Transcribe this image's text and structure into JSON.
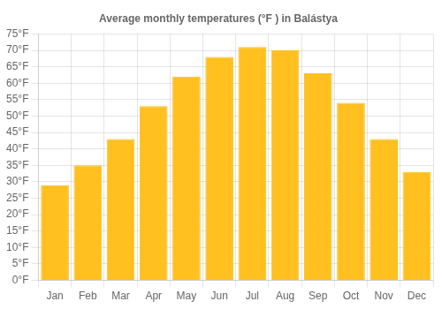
{
  "chart_data": {
    "type": "bar",
    "title": "Average monthly temperatures (°F ) in Balástya",
    "categories": [
      "Jan",
      "Feb",
      "Mar",
      "Apr",
      "May",
      "Jun",
      "Jul",
      "Aug",
      "Sep",
      "Oct",
      "Nov",
      "Dec"
    ],
    "values": [
      29,
      35,
      43,
      53,
      62,
      68,
      71,
      70,
      63,
      54,
      43,
      33
    ],
    "color": "#FFC020",
    "ylim": [
      0,
      75
    ],
    "yticks": [
      {
        "value": 0,
        "label": "0°F"
      },
      {
        "value": 5,
        "label": "5°F"
      },
      {
        "value": 10,
        "label": "10°F"
      },
      {
        "value": 15,
        "label": "15°F"
      },
      {
        "value": 20,
        "label": "20°F"
      },
      {
        "value": 25,
        "label": "25°F"
      },
      {
        "value": 30,
        "label": "30°F"
      },
      {
        "value": 35,
        "label": "35°F"
      },
      {
        "value": 40,
        "label": "40°F"
      },
      {
        "value": 45,
        "label": "45°F"
      },
      {
        "value": 50,
        "label": "50°F"
      },
      {
        "value": 55,
        "label": "55°F"
      },
      {
        "value": 60,
        "label": "60°F"
      },
      {
        "value": 65,
        "label": "65°F"
      },
      {
        "value": 70,
        "label": "70°F"
      },
      {
        "value": 75,
        "label": "75°F"
      }
    ],
    "grid": true
  }
}
